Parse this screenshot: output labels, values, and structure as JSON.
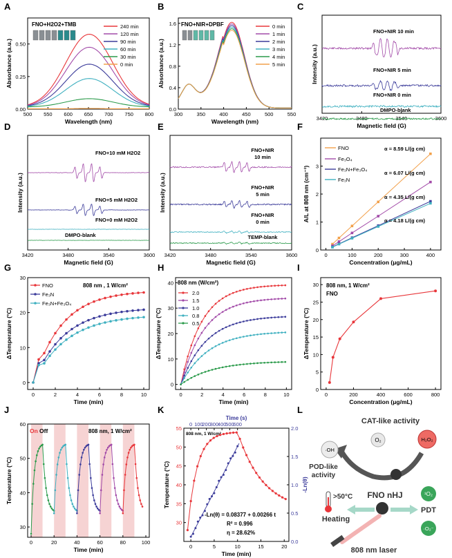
{
  "colors": {
    "red": "#e8363a",
    "darkblue": "#3b3b9a",
    "purple": "#a24aa8",
    "teal": "#3fb0c0",
    "green": "#2a9a4a",
    "orange": "#f2a04a",
    "pinkband": "#f6d3d3",
    "gray": "#555555"
  },
  "chart_data": [
    {
      "panel": "A",
      "type": "line",
      "title": "FNO+H2O2+TMB",
      "xlabel": "Wavelength (nm)",
      "ylabel": "Absorbance (a.u.)",
      "xlim": [
        500,
        800
      ],
      "ylim": [
        0,
        0.7
      ],
      "xticks": [
        "500",
        "550",
        "600",
        "650",
        "700",
        "750",
        "800"
      ],
      "yticks": [
        "0.00",
        "0.25",
        "0.50"
      ],
      "series": [
        {
          "name": "240 min",
          "peak": 0.56,
          "color": "#e8363a"
        },
        {
          "name": "120 min",
          "peak": 0.46,
          "color": "#a24aa8"
        },
        {
          "name": "90 min",
          "peak": 0.33,
          "color": "#3b3b9a"
        },
        {
          "name": "60 min",
          "peak": 0.22,
          "color": "#3fb0c0"
        },
        {
          "name": "30 min",
          "peak": 0.065,
          "color": "#2a9a4a"
        },
        {
          "name": "0 min",
          "peak": 0.005,
          "color": "#f2a04a"
        }
      ]
    },
    {
      "panel": "B",
      "type": "line",
      "title": "FNO+NIR+DPBF",
      "xlabel": "Wavelength (nm)",
      "ylabel": "Absorbance (a.u.)",
      "xlim": [
        300,
        550
      ],
      "ylim": [
        0,
        1.7
      ],
      "xticks": [
        "300",
        "350",
        "400",
        "450",
        "500",
        "550"
      ],
      "yticks": [
        "0.0",
        "0.4",
        "0.8",
        "1.2",
        "1.6"
      ],
      "series": [
        {
          "name": "0 min",
          "peak": 1.6,
          "color": "#e8363a"
        },
        {
          "name": "1 min",
          "peak": 1.57,
          "color": "#a24aa8"
        },
        {
          "name": "2 min",
          "peak": 1.54,
          "color": "#3b3b9a"
        },
        {
          "name": "3 min",
          "peak": 1.51,
          "color": "#3fb0c0"
        },
        {
          "name": "4 min",
          "peak": 1.48,
          "color": "#2a9a4a"
        },
        {
          "name": "5 min",
          "peak": 1.45,
          "color": "#f2a04a"
        }
      ]
    },
    {
      "panel": "C",
      "type": "line",
      "xlabel": "Magnetic field (G)",
      "ylabel": "Intensity (a.u.)",
      "xlim": [
        3420,
        3600
      ],
      "xticks": [
        "3420",
        "3480",
        "3540",
        "3600"
      ],
      "labels": [
        "FNO+NIR 10 min",
        "FNO+NIR 5 min",
        "FNO+NIR 0 min",
        "DMPO-blank"
      ]
    },
    {
      "panel": "D",
      "type": "line",
      "xlabel": "Magnetic field (G)",
      "ylabel": "Intensity (a.u.)",
      "xlim": [
        3420,
        3600
      ],
      "xticks": [
        "3420",
        "3480",
        "3540",
        "3600"
      ],
      "labels": [
        "FNO+10 mM H2O2",
        "FNO+5 mM H2O2",
        "FNO+0 mM H2O2",
        "DMPO-blank"
      ]
    },
    {
      "panel": "E",
      "type": "line",
      "xlabel": "Magnetic field (G)",
      "ylabel": "Intensity (a.u.)",
      "xlim": [
        3420,
        3600
      ],
      "xticks": [
        "3420",
        "3480",
        "3540",
        "3600"
      ],
      "labels": [
        "FNO+NIR",
        "10 min",
        "FNO+NIR",
        "5 min",
        "FNO+NIR",
        "0 min",
        "TEMP-blank"
      ]
    },
    {
      "panel": "F",
      "type": "scatter",
      "xlabel": "Concentration (μg/mL)",
      "ylabel": "A/L at 808 nm (cm⁻¹)",
      "xlim": [
        0,
        400
      ],
      "ylim": [
        0,
        4
      ],
      "xticks": [
        "0",
        "100",
        "200",
        "300",
        "400"
      ],
      "yticks": [
        "0",
        "1",
        "2",
        "3"
      ],
      "x": [
        25,
        50,
        100,
        200,
        400
      ],
      "series": [
        {
          "name": "FNO",
          "values": [
            0.21,
            0.43,
            0.86,
            1.72,
            3.44
          ],
          "color": "#f2a04a",
          "alpha": "α = 8.59 L/(g cm)"
        },
        {
          "name": "Fe₃O₄",
          "values": [
            0.15,
            0.3,
            0.61,
            1.21,
            2.43
          ],
          "color": "#a24aa8",
          "alpha": "α = 6.07 L/(g cm)"
        },
        {
          "name": "Fe₃N+Fe₃O₄",
          "values": [
            0.11,
            0.22,
            0.44,
            0.87,
            1.74
          ],
          "color": "#3b3b9a",
          "alpha": "α = 4.35 L/(g cm)"
        },
        {
          "name": "Fe₃N",
          "values": [
            0.1,
            0.21,
            0.42,
            0.84,
            1.67
          ],
          "color": "#3fb0c0",
          "alpha": "α = 4.18 L/(g cm)"
        }
      ]
    },
    {
      "panel": "G",
      "type": "line",
      "annotation": "808 nm , 1 W/cm²",
      "xlabel": "Time (min)",
      "ylabel": "ΔTemperature (°C)",
      "xlim": [
        -0.5,
        10.5
      ],
      "ylim": [
        -2,
        30
      ],
      "xticks": [
        "0",
        "2",
        "4",
        "6",
        "8",
        "10"
      ],
      "yticks": [
        "0",
        "10",
        "20",
        "30"
      ],
      "series": [
        {
          "name": "FNO",
          "final": 25.8,
          "tau": 2.6,
          "color": "#e8363a"
        },
        {
          "name": "Fe₃N",
          "final": 21.0,
          "tau": 2.8,
          "color": "#3b3b9a"
        },
        {
          "name": "Fe₃N+Fe₃O₄",
          "final": 19.0,
          "tau": 3.0,
          "color": "#3fb0c0"
        }
      ]
    },
    {
      "panel": "H",
      "type": "line",
      "legend_title": "808 nm (W/cm²)",
      "xlabel": "Time (min)",
      "ylabel": "ΔTemperature (°C)",
      "xlim": [
        -0.5,
        10.5
      ],
      "ylim": [
        -2,
        42
      ],
      "xticks": [
        "0",
        "2",
        "4",
        "6",
        "8",
        "10"
      ],
      "yticks": [
        "0",
        "10",
        "20",
        "30",
        "40"
      ],
      "series": [
        {
          "name": "2.0",
          "final": 38.5,
          "tau": 2.0,
          "color": "#e8363a"
        },
        {
          "name": "1.5",
          "final": 33.5,
          "tau": 2.2,
          "color": "#a24aa8"
        },
        {
          "name": "1.0",
          "final": 26.5,
          "tau": 2.4,
          "color": "#3b3b9a"
        },
        {
          "name": "0.8",
          "final": 20.5,
          "tau": 2.6,
          "color": "#3fb0c0"
        },
        {
          "name": "0.5",
          "final": 9.0,
          "tau": 3.0,
          "color": "#2a9a4a"
        }
      ]
    },
    {
      "panel": "I",
      "type": "line",
      "annotation": "808 nm, 1 W/cm²",
      "annotation2": "FNO",
      "xlabel": "Concentration (μg/mL)",
      "ylabel": "ΔTemperature (°C)",
      "xlim": [
        -40,
        840
      ],
      "ylim": [
        0,
        32
      ],
      "xticks": [
        "0",
        "200",
        "400",
        "600",
        "800"
      ],
      "yticks": [
        "0",
        "5",
        "10",
        "15",
        "20",
        "25",
        "30"
      ],
      "x": [
        25,
        50,
        100,
        200,
        400,
        800
      ],
      "values": [
        2.0,
        9.2,
        14.5,
        19.3,
        26.0,
        28.2
      ]
    },
    {
      "panel": "J",
      "type": "line",
      "on_label": "On",
      "off_label": "Off",
      "annotation": "808 nm, 1 W/cm²",
      "xlabel": "Time (min)",
      "ylabel": "Temperature (°C)",
      "xlim": [
        -3,
        103
      ],
      "ylim": [
        27,
        60
      ],
      "xticks": [
        "0",
        "20",
        "40",
        "60",
        "80",
        "100"
      ],
      "yticks": [
        "30",
        "40",
        "50",
        "60"
      ],
      "cycles": 5,
      "peak": 54,
      "base": 30
    },
    {
      "panel": "K",
      "type": "line",
      "annotation": "808 nm, 1 W/cm²",
      "top_axis_label": "Time (s)",
      "xlabel": "Time (min)",
      "ylabel": "Temperature (°C)",
      "ylabel_right": "-Ln(θ)",
      "xlim": [
        -1.5,
        21
      ],
      "ylim": [
        25,
        55
      ],
      "xticks": [
        "0",
        "5",
        "10",
        "15",
        "20"
      ],
      "yticks": [
        "30",
        "35",
        "40",
        "45",
        "50",
        "55"
      ],
      "top_xticks": [
        "0",
        "100",
        "200",
        "300",
        "400",
        "500",
        "600"
      ],
      "right_yticks": [
        "0.0",
        "0.5",
        "1.0",
        "1.5",
        "2.0"
      ],
      "fit": "-Ln(θ) = 0.08377 + 0.00266 t",
      "r2": "R² = 0.996",
      "eta": "η = 28.62%"
    }
  ],
  "schematic_L": {
    "label": "L",
    "cat": "CAT-like activity",
    "o2": "O₂",
    "h2o2": "H₂O₂",
    "oh": "·OH",
    "pod1": "POD-like",
    "pod2": "activity",
    "temp": ">50°C",
    "heating": "Heating",
    "fno": "FNO nHJ",
    "singlet": "¹O₂",
    "pdt": "PDT",
    "superoxide": "·O₂⁻",
    "laser": "808 nm laser"
  },
  "panel_letters": [
    "A",
    "B",
    "C",
    "D",
    "E",
    "F",
    "G",
    "H",
    "I",
    "J",
    "K",
    "L"
  ]
}
